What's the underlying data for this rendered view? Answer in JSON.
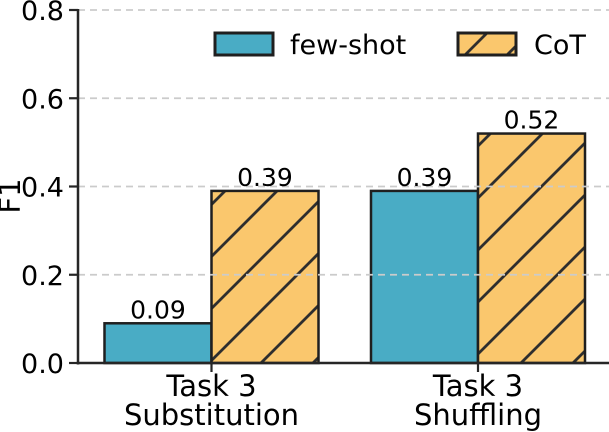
{
  "chart_data": {
    "type": "bar",
    "title": "",
    "xlabel": "",
    "ylabel": "F1",
    "ylim": [
      0,
      0.8
    ],
    "yticks": [
      0.0,
      0.2,
      0.4,
      0.6,
      0.8
    ],
    "ytick_labels": [
      "0.0",
      "0.2",
      "0.4",
      "0.6",
      "0.8"
    ],
    "grid": "horizontal-dashed",
    "grid_on_top_of_bars": true,
    "legend_position": "top-center",
    "categories": [
      {
        "line1": "Task 3",
        "line2": "Substitution"
      },
      {
        "line1": "Task 3",
        "line2": "Shuffling"
      }
    ],
    "series": [
      {
        "name": "few-shot",
        "color": "#49ACC5",
        "hatch": "none",
        "values": [
          0.09,
          0.39
        ],
        "labels": [
          "0.09",
          "0.39"
        ]
      },
      {
        "name": "CoT",
        "color": "#FAC76D",
        "hatch": "/",
        "values": [
          0.39,
          0.52
        ],
        "labels": [
          "0.39",
          "0.52"
        ]
      }
    ],
    "colors": {
      "bar_edge": "#1F1F1F",
      "hatch_line": "#2E2E2E",
      "grid": "#CBCBCB",
      "spine": "#262626",
      "text": "#000000",
      "background": "#FFFFFF"
    }
  }
}
